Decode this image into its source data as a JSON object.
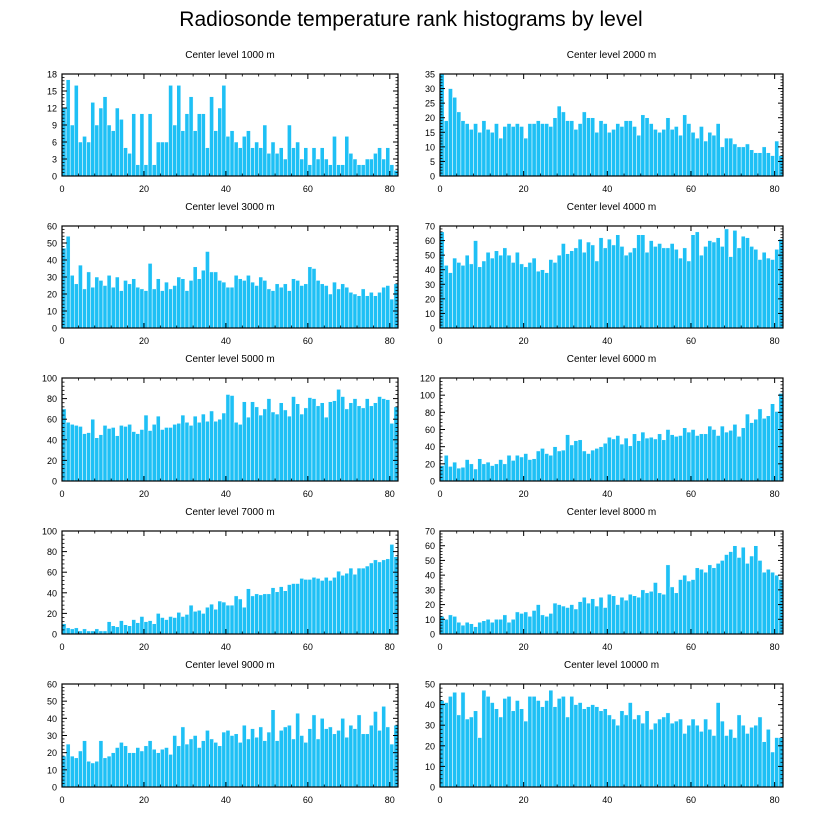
{
  "title": "Radiosonde temperature rank histograms by level",
  "colors": {
    "bar": "#1ec0f5",
    "bar_edge": "#ffffff",
    "axis": "#000000"
  },
  "chart_data": [
    {
      "type": "bar",
      "title": "Center level 1000 m",
      "xlim": [
        0,
        82
      ],
      "ylim": [
        0,
        18
      ],
      "yticks": [
        0,
        3,
        6,
        9,
        12,
        15,
        18
      ],
      "xticks": [
        0,
        20,
        40,
        60,
        80
      ],
      "values": [
        12,
        17,
        9,
        16,
        6,
        7,
        6,
        13,
        9,
        12,
        14,
        9,
        8,
        12,
        10,
        5,
        4,
        11,
        2,
        11,
        2,
        11,
        2,
        6,
        6,
        6,
        16,
        9,
        16,
        8,
        11,
        14,
        8,
        11,
        11,
        5,
        14,
        8,
        12,
        16,
        7,
        8,
        6,
        5,
        7,
        8,
        5,
        6,
        5,
        9,
        4,
        6,
        4,
        5,
        3,
        9,
        5,
        6,
        3,
        5,
        2,
        5,
        3,
        5,
        3,
        2,
        7,
        2,
        2,
        7,
        4,
        3,
        2,
        2,
        3,
        3,
        4,
        5,
        3,
        5,
        2,
        1
      ]
    },
    {
      "type": "bar",
      "title": "Center level 2000 m",
      "xlim": [
        0,
        82
      ],
      "ylim": [
        0,
        35
      ],
      "yticks": [
        0,
        5,
        10,
        15,
        20,
        25,
        30,
        35
      ],
      "xticks": [
        0,
        20,
        40,
        60,
        80
      ],
      "values": [
        35,
        19,
        30,
        27,
        22,
        19,
        18,
        16,
        18,
        15,
        19,
        16,
        15,
        18,
        13,
        17,
        18,
        17,
        18,
        17,
        13,
        18,
        18,
        19,
        18,
        18,
        17,
        20,
        24,
        22,
        19,
        19,
        16,
        18,
        22,
        20,
        20,
        15,
        19,
        18,
        15,
        16,
        18,
        17,
        19,
        19,
        17,
        14,
        21,
        20,
        18,
        16,
        15,
        16,
        20,
        16,
        17,
        14,
        21,
        18,
        15,
        13,
        17,
        12,
        15,
        14,
        18,
        10,
        13,
        13,
        11,
        10,
        10,
        11,
        9,
        8,
        8,
        10,
        8,
        7,
        12,
        7
      ]
    },
    {
      "type": "bar",
      "title": "Center level 3000 m",
      "xlim": [
        0,
        82
      ],
      "ylim": [
        0,
        60
      ],
      "yticks": [
        0,
        10,
        20,
        30,
        40,
        50,
        60
      ],
      "xticks": [
        0,
        20,
        40,
        60,
        80
      ],
      "values": [
        47,
        54,
        31,
        26,
        37,
        23,
        33,
        24,
        30,
        28,
        25,
        31,
        24,
        30,
        22,
        28,
        26,
        29,
        24,
        23,
        22,
        38,
        23,
        29,
        22,
        27,
        23,
        25,
        30,
        29,
        22,
        28,
        36,
        29,
        34,
        45,
        33,
        33,
        28,
        27,
        24,
        24,
        31,
        29,
        28,
        31,
        27,
        25,
        30,
        28,
        23,
        22,
        26,
        24,
        26,
        22,
        29,
        28,
        25,
        26,
        36,
        35,
        28,
        26,
        25,
        20,
        27,
        23,
        26,
        24,
        21,
        20,
        19,
        23,
        19,
        21,
        19,
        21,
        24,
        25,
        17,
        26
      ]
    },
    {
      "type": "bar",
      "title": "Center level 4000 m",
      "xlim": [
        0,
        82
      ],
      "ylim": [
        0,
        70
      ],
      "yticks": [
        0,
        10,
        20,
        30,
        40,
        50,
        60,
        70
      ],
      "xticks": [
        0,
        20,
        40,
        60,
        80
      ],
      "values": [
        66,
        43,
        38,
        48,
        45,
        43,
        50,
        44,
        60,
        42,
        46,
        52,
        48,
        53,
        50,
        55,
        50,
        45,
        52,
        44,
        42,
        45,
        48,
        39,
        40,
        38,
        47,
        45,
        50,
        58,
        51,
        53,
        55,
        61,
        52,
        59,
        57,
        46,
        62,
        55,
        61,
        57,
        64,
        56,
        50,
        52,
        55,
        64,
        64,
        52,
        60,
        56,
        58,
        55,
        55,
        58,
        54,
        48,
        55,
        46,
        64,
        66,
        50,
        56,
        60,
        59,
        62,
        56,
        68,
        49,
        67,
        55,
        63,
        62,
        56,
        54,
        47,
        52,
        48,
        47,
        54,
        61
      ]
    },
    {
      "type": "bar",
      "title": "Center level 5000 m",
      "xlim": [
        0,
        82
      ],
      "ylim": [
        0,
        100
      ],
      "yticks": [
        0,
        20,
        40,
        60,
        80,
        100
      ],
      "xticks": [
        0,
        20,
        40,
        60,
        80
      ],
      "values": [
        70,
        57,
        55,
        54,
        53,
        46,
        47,
        60,
        42,
        45,
        54,
        51,
        52,
        44,
        54,
        53,
        55,
        48,
        46,
        50,
        64,
        49,
        55,
        63,
        50,
        52,
        52,
        55,
        56,
        64,
        57,
        54,
        63,
        57,
        65,
        58,
        68,
        58,
        60,
        66,
        84,
        83,
        57,
        55,
        77,
        62,
        77,
        72,
        64,
        70,
        80,
        67,
        65,
        76,
        69,
        63,
        82,
        75,
        65,
        71,
        81,
        80,
        73,
        76,
        62,
        77,
        78,
        89,
        82,
        70,
        76,
        80,
        73,
        71,
        80,
        73,
        76,
        82,
        80,
        79,
        56,
        72
      ]
    },
    {
      "type": "bar",
      "title": "Center level 6000 m",
      "xlim": [
        0,
        82
      ],
      "ylim": [
        0,
        120
      ],
      "yticks": [
        0,
        20,
        40,
        60,
        80,
        100,
        120
      ],
      "xticks": [
        0,
        20,
        40,
        60,
        80
      ],
      "values": [
        18,
        30,
        17,
        22,
        15,
        16,
        25,
        20,
        14,
        26,
        20,
        22,
        18,
        20,
        25,
        20,
        30,
        24,
        30,
        28,
        32,
        25,
        26,
        35,
        38,
        32,
        30,
        40,
        35,
        36,
        54,
        42,
        47,
        48,
        35,
        32,
        36,
        38,
        40,
        44,
        51,
        49,
        53,
        43,
        50,
        41,
        55,
        47,
        57,
        50,
        51,
        49,
        55,
        48,
        60,
        54,
        52,
        53,
        62,
        57,
        60,
        53,
        55,
        55,
        64,
        60,
        53,
        64,
        57,
        59,
        66,
        52,
        62,
        78,
        68,
        72,
        84,
        73,
        76,
        90,
        81,
        102
      ]
    },
    {
      "type": "bar",
      "title": "Center level 7000 m",
      "xlim": [
        0,
        82
      ],
      "ylim": [
        0,
        100
      ],
      "yticks": [
        0,
        20,
        40,
        60,
        80,
        100
      ],
      "xticks": [
        0,
        20,
        40,
        60,
        80
      ],
      "values": [
        10,
        6,
        5,
        6,
        3,
        5,
        3,
        3,
        5,
        3,
        3,
        12,
        8,
        7,
        13,
        9,
        8,
        14,
        11,
        17,
        12,
        13,
        10,
        20,
        16,
        14,
        17,
        16,
        21,
        17,
        19,
        28,
        22,
        23,
        20,
        26,
        29,
        24,
        32,
        31,
        28,
        28,
        37,
        34,
        26,
        44,
        37,
        39,
        38,
        39,
        39,
        45,
        41,
        46,
        42,
        48,
        49,
        49,
        54,
        53,
        53,
        55,
        54,
        52,
        55,
        52,
        55,
        61,
        57,
        59,
        64,
        58,
        64,
        64,
        66,
        69,
        72,
        70,
        72,
        73,
        87,
        75
      ]
    },
    {
      "type": "bar",
      "title": "Center level 8000 m",
      "xlim": [
        0,
        82
      ],
      "ylim": [
        0,
        70
      ],
      "yticks": [
        0,
        10,
        20,
        30,
        40,
        50,
        60,
        70
      ],
      "xticks": [
        0,
        20,
        40,
        60,
        80
      ],
      "values": [
        12,
        10,
        13,
        12,
        8,
        6,
        8,
        7,
        5,
        8,
        9,
        10,
        8,
        10,
        10,
        13,
        8,
        10,
        15,
        14,
        15,
        12,
        16,
        20,
        13,
        12,
        14,
        21,
        20,
        19,
        18,
        20,
        17,
        22,
        25,
        21,
        24,
        19,
        25,
        18,
        27,
        26,
        20,
        25,
        23,
        27,
        26,
        25,
        30,
        28,
        29,
        35,
        28,
        27,
        47,
        32,
        28,
        37,
        40,
        36,
        37,
        45,
        44,
        42,
        47,
        45,
        48,
        50,
        54,
        56,
        60,
        52,
        59,
        48,
        53,
        60,
        50,
        42,
        44,
        42,
        40,
        37
      ]
    },
    {
      "type": "bar",
      "title": "Center level 9000 m",
      "xlim": [
        0,
        82
      ],
      "ylim": [
        0,
        60
      ],
      "yticks": [
        0,
        10,
        20,
        30,
        40,
        50,
        60
      ],
      "xticks": [
        0,
        20,
        40,
        60,
        80
      ],
      "values": [
        18,
        25,
        18,
        17,
        21,
        27,
        15,
        14,
        15,
        27,
        17,
        18,
        20,
        23,
        26,
        24,
        20,
        20,
        23,
        21,
        24,
        27,
        22,
        20,
        22,
        23,
        19,
        30,
        24,
        35,
        25,
        28,
        30,
        23,
        27,
        33,
        28,
        26,
        24,
        32,
        33,
        30,
        31,
        26,
        36,
        28,
        34,
        29,
        35,
        27,
        32,
        45,
        27,
        33,
        35,
        36,
        28,
        43,
        30,
        26,
        34,
        42,
        28,
        40,
        34,
        35,
        31,
        33,
        40,
        29,
        36,
        34,
        42,
        31,
        31,
        36,
        44,
        33,
        47,
        35,
        25,
        36
      ]
    },
    {
      "type": "bar",
      "title": "Center level 10000 m",
      "xlim": [
        0,
        82
      ],
      "ylim": [
        0,
        50
      ],
      "yticks": [
        0,
        10,
        20,
        30,
        40,
        50
      ],
      "xticks": [
        0,
        20,
        40,
        60,
        80
      ],
      "values": [
        42,
        41,
        44,
        46,
        35,
        46,
        33,
        34,
        37,
        24,
        47,
        44,
        41,
        38,
        34,
        43,
        44,
        37,
        42,
        38,
        32,
        44,
        44,
        42,
        39,
        42,
        47,
        39,
        43,
        44,
        34,
        44,
        40,
        41,
        38,
        39,
        40,
        39,
        37,
        38,
        35,
        33,
        30,
        37,
        35,
        41,
        33,
        35,
        31,
        37,
        28,
        31,
        33,
        34,
        36,
        31,
        32,
        33,
        26,
        30,
        33,
        30,
        27,
        33,
        28,
        25,
        41,
        32,
        25,
        28,
        24,
        35,
        30,
        26,
        29,
        30,
        34,
        22,
        28,
        17,
        24,
        24
      ]
    }
  ]
}
